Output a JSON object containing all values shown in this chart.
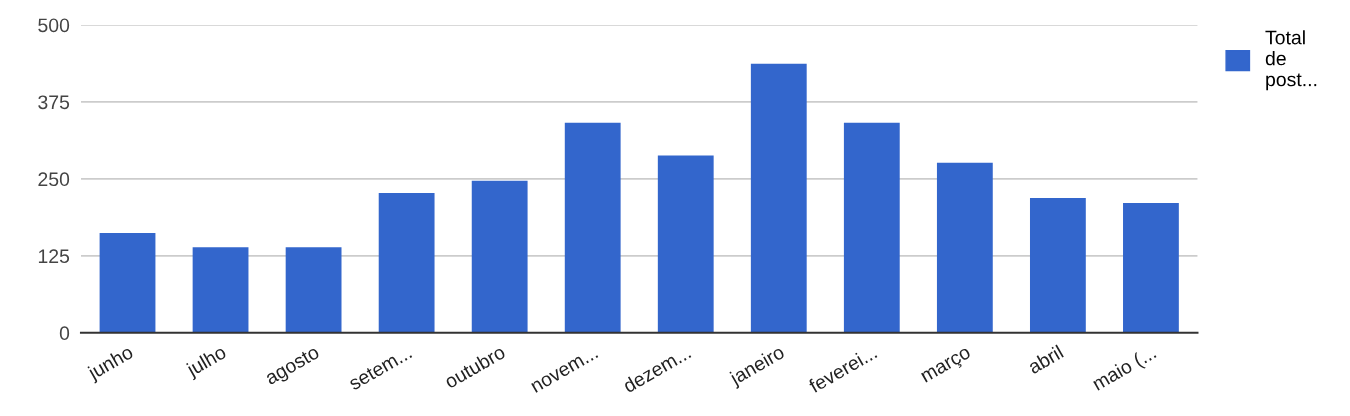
{
  "chart_data": {
    "type": "bar",
    "categories": [
      "junho",
      "julho",
      "agosto",
      "setem...",
      "outubro",
      "novem...",
      "dezem...",
      "janeiro",
      "feverei...",
      "março",
      "abril",
      "maio (..."
    ],
    "series": [
      {
        "name": "Total de post...",
        "color": "#3366cc",
        "values": [
          162,
          139,
          139,
          227,
          247,
          341,
          288,
          437,
          341,
          276,
          219,
          211
        ]
      }
    ],
    "ylim": [
      0,
      500
    ],
    "yticks": [
      0,
      125,
      250,
      375,
      500
    ],
    "grid": "y",
    "legend": "right"
  }
}
